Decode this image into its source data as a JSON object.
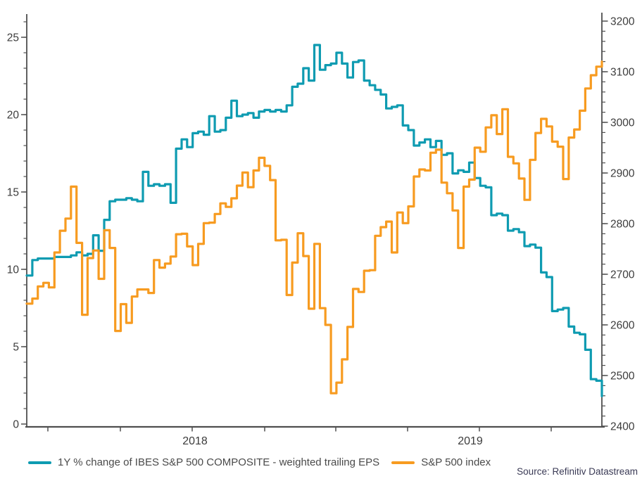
{
  "source": "Source: Refinitiv Datastream",
  "legend": {
    "eps_label": "1Y % change of IBES S&P 500 COMPOSITE - weighted trailing EPS",
    "spx_label": "S&P 500 index"
  },
  "chart_data": {
    "type": "line",
    "title": "",
    "x": {
      "start": "2017-12-01",
      "end": "2019-11-29",
      "freq": "weekly",
      "tick_labels": [
        "2018",
        "2019"
      ],
      "quarter_ticks": 8
    },
    "left_axis": {
      "range": [
        0,
        25
      ],
      "major_ticks": [
        0,
        5,
        10,
        15,
        20,
        25
      ],
      "minor_step": 1,
      "color": "#3c3c3c"
    },
    "right_axis": {
      "range": [
        2400,
        3200
      ],
      "major_ticks": [
        2400,
        2500,
        2600,
        2700,
        2800,
        2900,
        3000,
        3100,
        3200
      ],
      "minor_step": 20,
      "color": "#3c3c3c"
    },
    "grid": false,
    "legend_position": "bottom",
    "series": [
      {
        "name": "1Y % change of IBES S&P 500 COMPOSITE - weighted trailing EPS",
        "axis": "left",
        "color": "#0E9BB1",
        "interpolation": "step-after",
        "values": [
          9.6,
          10.6,
          10.7,
          10.7,
          10.7,
          10.8,
          10.8,
          10.8,
          10.9,
          11.1,
          10.9,
          11.0,
          12.2,
          11.2,
          13.2,
          14.4,
          14.5,
          14.5,
          14.6,
          14.5,
          14.4,
          16.3,
          15.4,
          15.5,
          15.4,
          15.5,
          14.3,
          17.8,
          18.4,
          17.9,
          18.8,
          18.9,
          18.7,
          19.9,
          18.9,
          19.0,
          19.8,
          20.9,
          19.9,
          20.0,
          20.1,
          19.8,
          20.2,
          20.3,
          20.2,
          20.3,
          20.2,
          20.6,
          21.8,
          22.0,
          23.0,
          22.2,
          24.5,
          22.9,
          23.2,
          23.3,
          24.0,
          23.3,
          22.4,
          23.4,
          23.5,
          22.2,
          21.9,
          21.6,
          21.3,
          20.4,
          20.5,
          20.6,
          19.3,
          19.0,
          18.0,
          18.2,
          18.4,
          17.9,
          18.3,
          17.4,
          17.5,
          16.2,
          16.4,
          16.3,
          16.9,
          15.9,
          15.4,
          15.3,
          13.5,
          13.6,
          13.5,
          12.5,
          12.6,
          12.4,
          11.5,
          11.6,
          11.4,
          9.8,
          9.5,
          7.3,
          7.4,
          7.5,
          6.3,
          5.9,
          5.8,
          4.8,
          2.9,
          2.8,
          1.8
        ]
      },
      {
        "name": "S&P 500 index",
        "axis": "right",
        "color": "#F79B20",
        "interpolation": "step-after",
        "values": [
          2642,
          2652,
          2676,
          2683,
          2674,
          2743,
          2786,
          2810,
          2873,
          2762,
          2620,
          2732,
          2747,
          2691,
          2787,
          2752,
          2588,
          2641,
          2604,
          2656,
          2670,
          2670,
          2663,
          2728,
          2713,
          2721,
          2735,
          2779,
          2780,
          2755,
          2718,
          2760,
          2801,
          2802,
          2819,
          2840,
          2833,
          2850,
          2875,
          2901,
          2872,
          2905,
          2930,
          2914,
          2886,
          2767,
          2768,
          2659,
          2723,
          2781,
          2736,
          2632,
          2760,
          2633,
          2600,
          2465,
          2486,
          2532,
          2596,
          2671,
          2665,
          2707,
          2708,
          2776,
          2793,
          2804,
          2743,
          2822,
          2801,
          2834,
          2893,
          2907,
          2905,
          2940,
          2946,
          2881,
          2860,
          2826,
          2752,
          2873,
          2887,
          2950,
          2942,
          2990,
          3014,
          2977,
          3026,
          2932,
          2919,
          2889,
          2847,
          2926,
          2979,
          3007,
          2992,
          2962,
          2952,
          2888,
          2970,
          2986,
          3023,
          3067,
          3093,
          3110,
          3120
        ]
      }
    ]
  }
}
